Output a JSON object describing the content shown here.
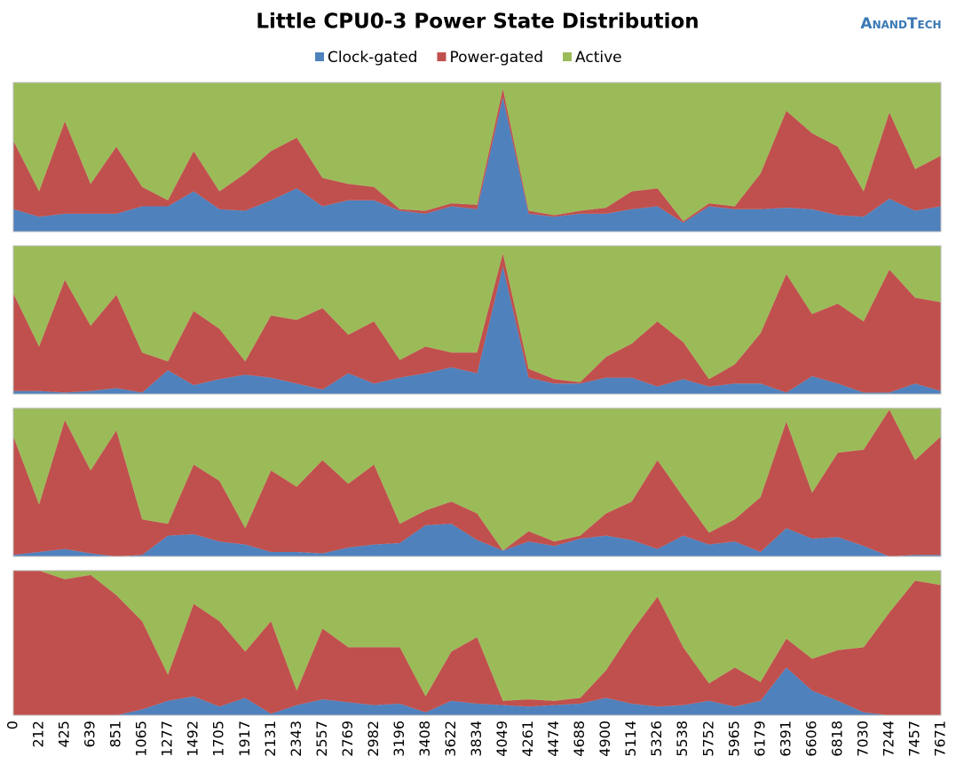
{
  "chart_data": {
    "type": "area",
    "stacked": true,
    "title": "Little CPU0-3 Power State Distribution",
    "logo": "AnandTech",
    "categories": [
      "0",
      "212",
      "425",
      "639",
      "851",
      "1065",
      "1277",
      "1492",
      "1705",
      "1917",
      "2131",
      "2343",
      "2557",
      "2769",
      "2982",
      "3196",
      "3408",
      "3622",
      "3834",
      "4049",
      "4261",
      "4474",
      "4688",
      "4900",
      "5114",
      "5326",
      "5538",
      "5752",
      "5965",
      "6179",
      "6391",
      "6606",
      "6818",
      "7030",
      "7244",
      "7457",
      "7671"
    ],
    "ylim": [
      0,
      100
    ],
    "series": [
      {
        "name": "Clock-gated",
        "color": "#4f81bd"
      },
      {
        "name": "Power-gated",
        "color": "#c0504d"
      },
      {
        "name": "Active",
        "color": "#9bbb59"
      }
    ],
    "panels": [
      {
        "series": [
          {
            "values": [
              15,
              10,
              12,
              12,
              12,
              17,
              17,
              27,
              15,
              14,
              21,
              29,
              17,
              21,
              21,
              14,
              12,
              17,
              15,
              90,
              12,
              10,
              12,
              12,
              15,
              17,
              6,
              17,
              15,
              15,
              16,
              15,
              11,
              10,
              22,
              14,
              17
            ]
          },
          {
            "values": [
              46,
              17,
              62,
              20,
              45,
              13,
              4,
              27,
              12,
              25,
              33,
              34,
              19,
              11,
              9,
              1,
              2,
              2,
              3,
              6,
              2,
              1,
              2,
              4,
              12,
              12,
              1,
              2,
              2,
              24,
              65,
              51,
              46,
              17,
              58,
              28,
              34
            ]
          },
          {
            "values": [
              39,
              73,
              26,
              68,
              43,
              70,
              79,
              46,
              73,
              61,
              46,
              37,
              64,
              68,
              70,
              85,
              86,
              81,
              82,
              4,
              86,
              89,
              86,
              84,
              73,
              71,
              93,
              81,
              83,
              61,
              19,
              34,
              43,
              73,
              20,
              58,
              49
            ]
          }
        ]
      },
      {
        "series": [
          {
            "values": [
              2,
              2,
              1,
              2,
              4,
              1,
              16,
              6,
              10,
              13,
              11,
              7,
              3,
              14,
              7,
              11,
              14,
              18,
              14,
              86,
              11,
              7,
              7,
              11,
              11,
              5,
              10,
              5,
              7,
              7,
              1,
              12,
              7,
              1,
              1,
              7,
              2
            ]
          },
          {
            "values": [
              66,
              30,
              76,
              44,
              63,
              27,
              6,
              50,
              34,
              9,
              42,
              43,
              55,
              26,
              42,
              12,
              18,
              10,
              14,
              9,
              6,
              3,
              1,
              14,
              23,
              44,
              25,
              5,
              13,
              34,
              80,
              42,
              54,
              48,
              83,
              58,
              60
            ]
          },
          {
            "values": [
              32,
              68,
              23,
              54,
              33,
              72,
              78,
              44,
              56,
              78,
              47,
              50,
              42,
              60,
              51,
              77,
              68,
              72,
              72,
              5,
              83,
              90,
              92,
              75,
              66,
              51,
              65,
              90,
              80,
              59,
              19,
              46,
              39,
              51,
              16,
              35,
              38
            ]
          }
        ]
      },
      {
        "series": [
          {
            "values": [
              1,
              3,
              5,
              2,
              0,
              1,
              14,
              15,
              10,
              8,
              3,
              3,
              2,
              6,
              8,
              9,
              21,
              22,
              11,
              4,
              10,
              7,
              12,
              14,
              11,
              5,
              14,
              8,
              10,
              3,
              19,
              12,
              13,
              7,
              0,
              1,
              1
            ]
          },
          {
            "values": [
              80,
              32,
              87,
              56,
              85,
              24,
              8,
              47,
              41,
              11,
              55,
              44,
              63,
              43,
              54,
              13,
              10,
              15,
              18,
              0,
              7,
              3,
              2,
              15,
              26,
              60,
              26,
              8,
              15,
              37,
              72,
              31,
              57,
              65,
              99,
              64,
              80
            ]
          },
          {
            "values": [
              19,
              65,
              8,
              42,
              15,
              75,
              78,
              38,
              49,
              81,
              42,
              53,
              35,
              51,
              38,
              78,
              69,
              63,
              71,
              96,
              83,
              90,
              86,
              71,
              63,
              35,
              60,
              84,
              75,
              60,
              9,
              57,
              30,
              28,
              1,
              35,
              19
            ]
          }
        ]
      },
      {
        "series": [
          {
            "values": [
              0,
              0,
              0,
              0,
              0,
              4,
              10,
              13,
              6,
              12,
              1,
              7,
              11,
              9,
              7,
              8,
              2,
              10,
              8,
              7,
              6,
              7,
              8,
              12,
              8,
              6,
              7,
              10,
              6,
              10,
              33,
              17,
              10,
              2,
              0,
              0,
              0
            ]
          },
          {
            "values": [
              100,
              100,
              94,
              97,
              83,
              61,
              18,
              64,
              59,
              32,
              64,
              10,
              49,
              38,
              40,
              39,
              11,
              34,
              46,
              3,
              5,
              3,
              4,
              19,
              50,
              76,
              40,
              12,
              27,
              13,
              20,
              22,
              35,
              45,
              71,
              93,
              90
            ]
          },
          {
            "values": [
              0,
              0,
              6,
              3,
              17,
              35,
              72,
              23,
              35,
              56,
              35,
              83,
              40,
              53,
              53,
              53,
              87,
              56,
              46,
              90,
              89,
              90,
              88,
              69,
              42,
              18,
              53,
              78,
              67,
              77,
              47,
              61,
              55,
              53,
              29,
              7,
              10
            ]
          }
        ]
      }
    ]
  }
}
